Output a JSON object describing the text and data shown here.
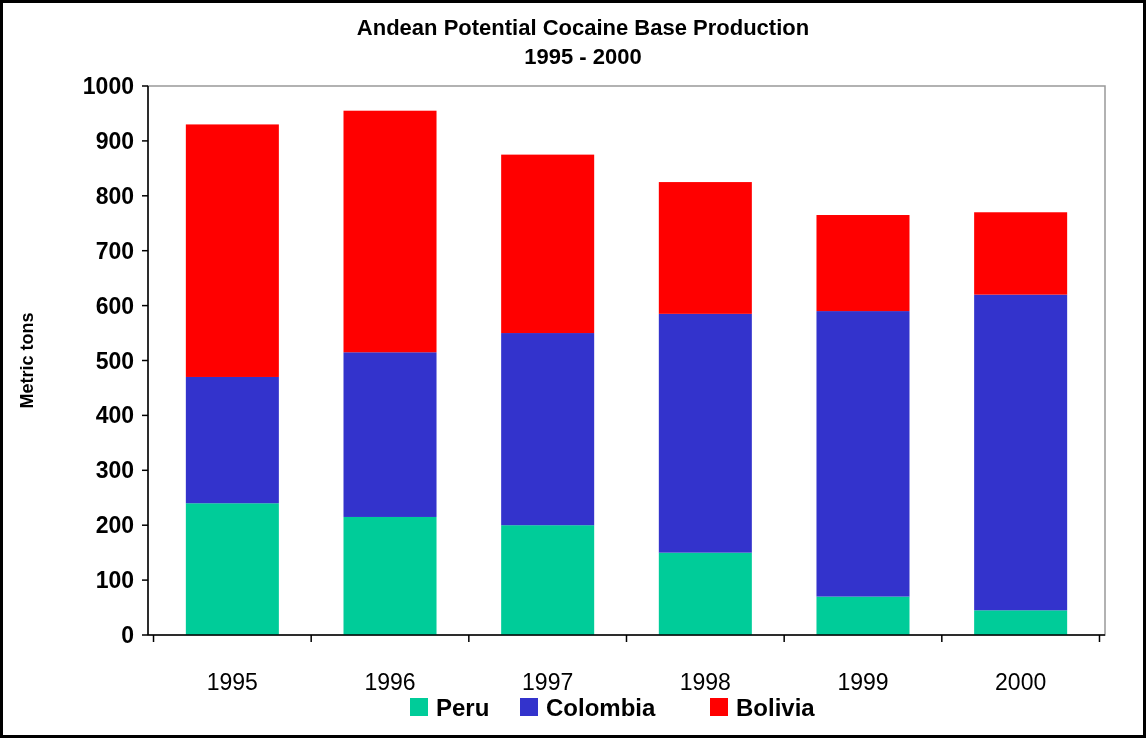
{
  "chart_data": {
    "type": "bar",
    "title": "Andean Potential Cocaine Base Production",
    "subtitle": "1995 - 2000",
    "ylabel": "Metric tons",
    "categories": [
      "1995",
      "1996",
      "1997",
      "1998",
      "1999",
      "2000"
    ],
    "stacked": true,
    "series": [
      {
        "name": "Peru",
        "color": "#00cc99",
        "values": [
          240,
          215,
          200,
          150,
          70,
          45
        ]
      },
      {
        "name": "Colombia",
        "color": "#3333cc",
        "values": [
          230,
          300,
          350,
          435,
          520,
          575
        ]
      },
      {
        "name": "Bolivia",
        "color": "#ff0000",
        "values": [
          460,
          440,
          325,
          240,
          175,
          150
        ]
      }
    ],
    "ylim": [
      0,
      1000
    ],
    "yticks": [
      0,
      100,
      200,
      300,
      400,
      500,
      600,
      700,
      800,
      900,
      1000
    ],
    "grid": false,
    "legend": "bottom"
  }
}
